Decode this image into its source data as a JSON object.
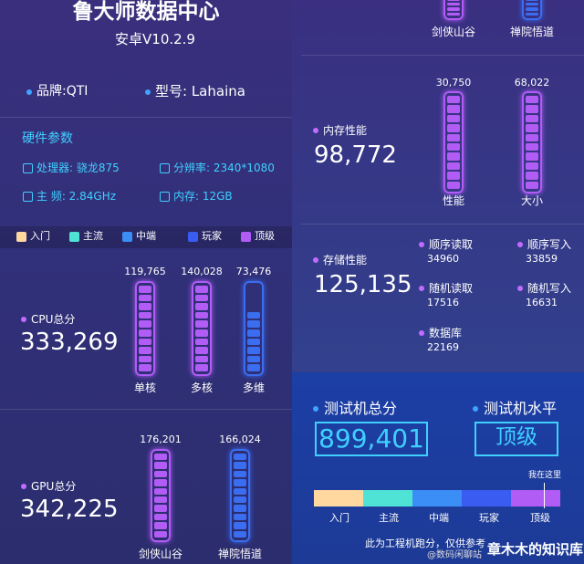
{
  "header": {
    "title": "鲁大师数据中心",
    "version": "安卓V10.2.9",
    "brand": "品牌:QTI",
    "model": "型号: Lahaina"
  },
  "hardware": {
    "title": "硬件参数",
    "cpu": "处理器: 骁龙875",
    "resolution": "分辨率: 2340*1080",
    "frequency": "主  频: 2.84GHz",
    "memory": "内存: 12GB"
  },
  "legend": [
    "入门",
    "主流",
    "中端",
    "玩家",
    "顶级"
  ],
  "cpu": {
    "title": "CPU总分",
    "score": "333,269",
    "bars": [
      {
        "value": "119,765",
        "label": "单核"
      },
      {
        "value": "140,028",
        "label": "多核"
      },
      {
        "value": "73,476",
        "label": "多维"
      }
    ]
  },
  "gpu": {
    "title": "GPU总分",
    "score": "342,225",
    "bars": [
      {
        "value": "176,201",
        "label": "剑侠山谷"
      },
      {
        "value": "166,024",
        "label": "禅院悟道"
      }
    ]
  },
  "gpu_continued": {
    "labels": [
      "剑侠山谷",
      "禅院悟道"
    ]
  },
  "memory": {
    "title": "内存性能",
    "score": "98,772",
    "bars": [
      {
        "value": "30,750",
        "label": "性能"
      },
      {
        "value": "68,022",
        "label": "大小"
      }
    ]
  },
  "storage": {
    "title": "存储性能",
    "score": "125,135",
    "items": [
      {
        "label": "顺序读取",
        "value": "34960"
      },
      {
        "label": "顺序写入",
        "value": "33859"
      },
      {
        "label": "随机读取",
        "value": "17516"
      },
      {
        "label": "随机写入",
        "value": "16631"
      },
      {
        "label": "数据库",
        "value": "22169"
      }
    ]
  },
  "result": {
    "total_title": "测试机总分",
    "total": "899,401",
    "level_title": "测试机水平",
    "level": "顶级",
    "marker": "我在这里",
    "scale": [
      "入门",
      "主流",
      "中端",
      "玩家",
      "顶级"
    ]
  },
  "footer": {
    "note": "此为工程机跑分，仅供参考",
    "weibo": "@数码闲聊站",
    "watermark": "章木木的知识库"
  }
}
